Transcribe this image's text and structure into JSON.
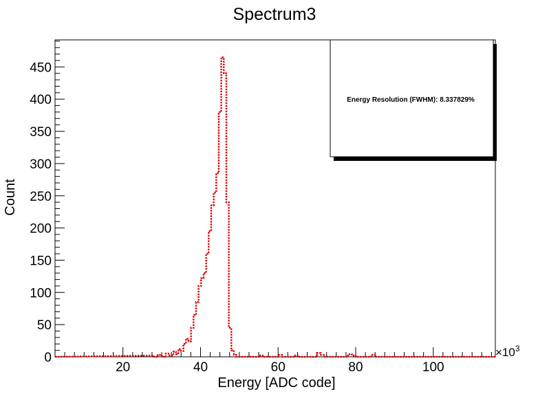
{
  "chart_data": {
    "type": "step-histogram",
    "title": "Spectrum3",
    "xlabel": "Energy [ADC code]",
    "ylabel": "Count",
    "x_multiplier_label": "×10",
    "x_multiplier_exp": "3",
    "xlim": [
      2.5,
      116
    ],
    "ylim": [
      0,
      492
    ],
    "x_ticks": [
      20,
      40,
      60,
      80,
      100
    ],
    "x_tick_labels": [
      "20",
      "40",
      "60",
      "80",
      "100"
    ],
    "y_ticks": [
      0,
      50,
      100,
      150,
      200,
      250,
      300,
      350,
      400,
      450
    ],
    "y_tick_labels": [
      "0",
      "50",
      "100",
      "150",
      "200",
      "250",
      "300",
      "350",
      "400",
      "450"
    ],
    "bin_width": 0.65,
    "bins": [
      [
        27.0,
        2
      ],
      [
        28.0,
        0
      ],
      [
        29.0,
        3
      ],
      [
        30.0,
        0
      ],
      [
        31.0,
        5
      ],
      [
        32.0,
        2
      ],
      [
        33.0,
        8
      ],
      [
        33.65,
        4
      ],
      [
        34.3,
        12
      ],
      [
        34.95,
        9
      ],
      [
        35.6,
        20
      ],
      [
        36.25,
        28
      ],
      [
        36.9,
        24
      ],
      [
        37.55,
        45
      ],
      [
        38.2,
        65
      ],
      [
        38.85,
        85
      ],
      [
        39.5,
        110
      ],
      [
        40.15,
        122
      ],
      [
        40.8,
        130
      ],
      [
        41.45,
        160
      ],
      [
        42.1,
        195
      ],
      [
        42.75,
        235
      ],
      [
        43.4,
        255
      ],
      [
        44.05,
        285
      ],
      [
        44.7,
        380
      ],
      [
        45.35,
        465
      ],
      [
        46.0,
        440
      ],
      [
        46.65,
        240
      ],
      [
        47.3,
        45
      ],
      [
        47.95,
        10
      ],
      [
        48.6,
        3
      ],
      [
        49.25,
        0
      ],
      [
        55.0,
        2
      ],
      [
        56.0,
        0
      ],
      [
        60.0,
        3
      ],
      [
        61.0,
        0
      ],
      [
        64.0,
        2
      ],
      [
        65.0,
        0
      ],
      [
        70.0,
        6
      ],
      [
        71.0,
        3
      ],
      [
        72.0,
        0
      ],
      [
        78.0,
        4
      ],
      [
        79.0,
        2
      ],
      [
        80.0,
        0
      ],
      [
        84.0,
        3
      ],
      [
        85.0,
        0
      ]
    ],
    "line_color": "#e00000",
    "legend": {
      "text": "Energy Resolution (FWHM): 8.337829%",
      "placement": "top-right"
    },
    "grid": false
  }
}
